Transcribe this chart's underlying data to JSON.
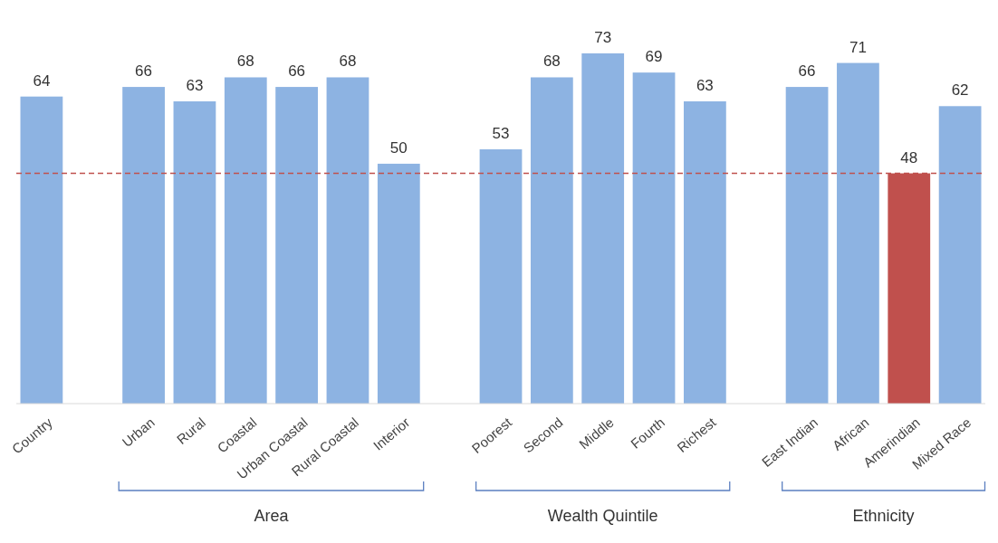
{
  "chart_data": {
    "type": "bar",
    "categories": [
      "Country",
      null,
      "Urban",
      "Rural",
      "Coastal",
      "Urban Coastal",
      "Rural Coastal",
      "Interior",
      null,
      "Poorest",
      "Second",
      "Middle",
      "Fourth",
      "Richest",
      null,
      "East Indian",
      "African",
      "Amerindian",
      "Mixed Race"
    ],
    "values": [
      64,
      null,
      66,
      63,
      68,
      66,
      68,
      50,
      null,
      53,
      68,
      73,
      69,
      63,
      null,
      66,
      71,
      48,
      62
    ],
    "colors": [
      "#8db3e2",
      null,
      "#8db3e2",
      "#8db3e2",
      "#8db3e2",
      "#8db3e2",
      "#8db3e2",
      "#8db3e2",
      null,
      "#8db3e2",
      "#8db3e2",
      "#8db3e2",
      "#8db3e2",
      "#8db3e2",
      null,
      "#8db3e2",
      "#8db3e2",
      "#c0504d",
      "#8db3e2"
    ],
    "data_labels": true,
    "ref_lines": [
      {
        "axis": "y",
        "value": 48,
        "color": "#c0504d",
        "line_style": "dashed"
      }
    ],
    "annotations": [
      "Area",
      "Wealth Quintile",
      "Ethnicity"
    ]
  }
}
